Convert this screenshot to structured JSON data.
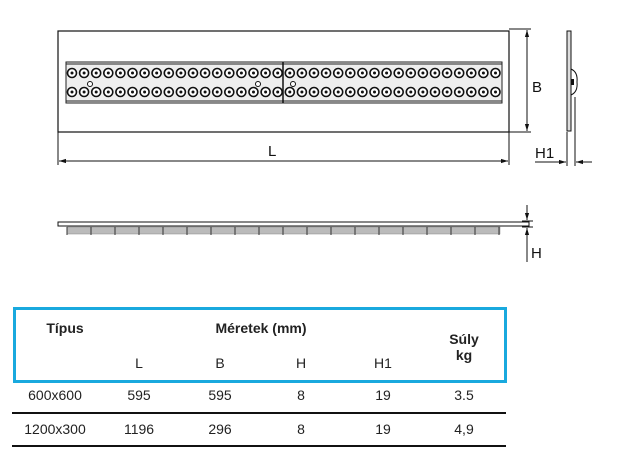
{
  "drawing": {
    "dimension_labels": {
      "L": "L",
      "B": "B",
      "H": "H",
      "H1": "H1"
    }
  },
  "table": {
    "border_color": "#19a9de",
    "headers": {
      "type": "Típus",
      "dimensions": "Méretek (mm)",
      "weight_line1": "Súly",
      "weight_line2": "kg",
      "sub": [
        "L",
        "B",
        "H",
        "H1"
      ]
    },
    "rows": [
      [
        "600x600",
        "595",
        "595",
        "8",
        "19",
        "3.5"
      ],
      [
        "1200x300",
        "1196",
        "296",
        "8",
        "19",
        "4,9"
      ]
    ]
  }
}
